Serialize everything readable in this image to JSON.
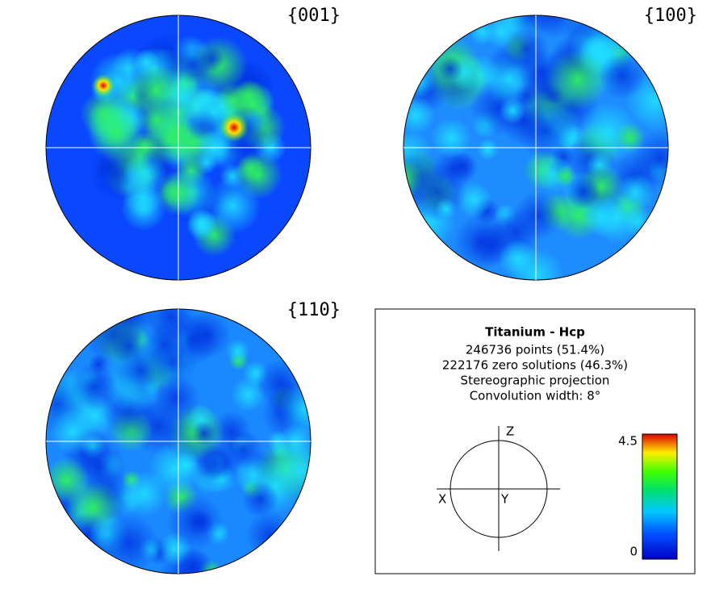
{
  "pole_figures": [
    {
      "label": "{001}"
    },
    {
      "label": "{100}"
    },
    {
      "label": "{110}"
    }
  ],
  "info": {
    "title": "Titanium - Hcp",
    "lines": [
      "246736 points  (51.4%)",
      "222176 zero solutions (46.3%)",
      "Stereographic projection",
      "Convolution width: 8°"
    ]
  },
  "axes": {
    "z": "Z",
    "x": "X",
    "y": "Y"
  },
  "colorbar": {
    "max": "4.5",
    "min": "0"
  }
}
